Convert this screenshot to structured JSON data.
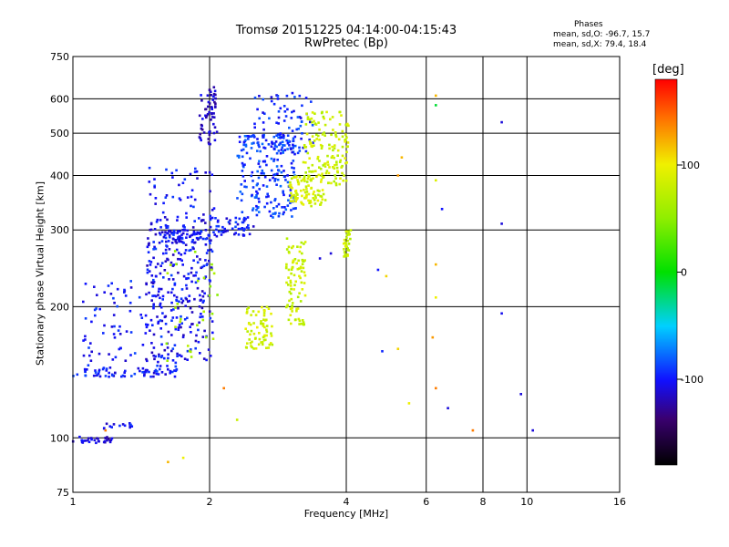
{
  "header": {
    "title": "Tromsø 20151225 04:14:00-04:15:43",
    "subtitle": "RwPretec (Bp)",
    "phases_label": "Phases",
    "stat_o": "mean, sd,O: -96.7, 15.7",
    "stat_x": "mean, sd,X: 79.4, 18.4"
  },
  "colorbar": {
    "label": "[deg]",
    "ticks": [
      {
        "value": 100,
        "label": "100"
      },
      {
        "value": 0,
        "label": "0"
      },
      {
        "value": -100,
        "label": "-100"
      }
    ],
    "range": [
      -180,
      180
    ]
  },
  "chart_data": {
    "type": "scatter",
    "title": "Tromsø 20151225 04:14:00-04:15:43",
    "subtitle": "RwPretec (Bp)",
    "xlabel": "Frequency [MHz]",
    "ylabel": "Stationary phase Virtual Height [km]",
    "x_scale": "log",
    "y_scale": "log",
    "xlim": [
      1,
      16
    ],
    "ylim": [
      75,
      750
    ],
    "x_ticks": [
      1,
      2,
      4,
      6,
      8,
      10,
      16
    ],
    "x_tick_labels": [
      "1",
      "2",
      "4",
      "6",
      "8",
      "10",
      "16"
    ],
    "y_ticks": [
      75,
      100,
      200,
      300,
      400,
      500,
      600,
      750
    ],
    "y_tick_labels": [
      "75",
      "100",
      "200",
      "300",
      "400",
      "500",
      "600",
      "750"
    ],
    "grid": true,
    "color_by": "phase [deg]",
    "traces": [
      {
        "x_range": [
          1.0,
          1.22
        ],
        "y_range": [
          97,
          101
        ],
        "phase": -110,
        "n": 30
      },
      {
        "x_range": [
          1.17,
          1.38
        ],
        "y_range": [
          104,
          108
        ],
        "phase": -105,
        "n": 14
      },
      {
        "x_range": [
          1.0,
          1.7
        ],
        "y_range": [
          138,
          145
        ],
        "phase": -100,
        "n": 70
      },
      {
        "x_range": [
          1.05,
          1.75
        ],
        "y_range": [
          145,
          230
        ],
        "phase": -100,
        "n": 110
      },
      {
        "x_range": [
          1.45,
          2.05
        ],
        "y_range": [
          150,
          330
        ],
        "phase": -105,
        "n": 220
      },
      {
        "x_range": [
          1.55,
          2.0
        ],
        "y_range": [
          280,
          300
        ],
        "phase": -102,
        "n": 70
      },
      {
        "x_range": [
          1.45,
          2.05
        ],
        "y_range": [
          230,
          420
        ],
        "phase": -100,
        "n": 90
      },
      {
        "x_range": [
          1.9,
          2.08
        ],
        "y_range": [
          470,
          640
        ],
        "phase": -115,
        "n": 60
      },
      {
        "x_range": [
          2.05,
          2.5
        ],
        "y_range": [
          290,
          320
        ],
        "phase": -100,
        "n": 50
      },
      {
        "x_range": [
          2.3,
          3.1
        ],
        "y_range": [
          320,
          500
        ],
        "phase": -90,
        "n": 220
      },
      {
        "x_range": [
          2.5,
          3.4
        ],
        "y_range": [
          450,
          620
        ],
        "phase": -95,
        "n": 80
      },
      {
        "x_range": [
          3.0,
          3.6
        ],
        "y_range": [
          340,
          400
        ],
        "phase": 85,
        "n": 90
      },
      {
        "x_range": [
          3.2,
          4.05
        ],
        "y_range": [
          380,
          560
        ],
        "phase": 80,
        "n": 150
      },
      {
        "x_range": [
          2.4,
          2.75
        ],
        "y_range": [
          160,
          200
        ],
        "phase": 85,
        "n": 70
      },
      {
        "x_range": [
          2.95,
          3.25
        ],
        "y_range": [
          180,
          290
        ],
        "phase": 80,
        "n": 90
      },
      {
        "x_range": [
          3.95,
          4.1
        ],
        "y_range": [
          260,
          300
        ],
        "phase": 82,
        "n": 30
      },
      {
        "x_range": [
          1.6,
          2.1
        ],
        "y_range": [
          150,
          280
        ],
        "phase": 60,
        "n": 30
      }
    ],
    "points": [
      {
        "x": 8.8,
        "y": 530,
        "phase": -110
      },
      {
        "x": 8.8,
        "y": 310,
        "phase": -110
      },
      {
        "x": 8.8,
        "y": 193,
        "phase": -105
      },
      {
        "x": 9.7,
        "y": 126,
        "phase": -110
      },
      {
        "x": 10.3,
        "y": 104,
        "phase": -110
      },
      {
        "x": 6.3,
        "y": 610,
        "phase": 120
      },
      {
        "x": 6.3,
        "y": 580,
        "phase": -10
      },
      {
        "x": 6.3,
        "y": 390,
        "phase": 90
      },
      {
        "x": 6.5,
        "y": 335,
        "phase": -100
      },
      {
        "x": 6.3,
        "y": 250,
        "phase": 120
      },
      {
        "x": 6.3,
        "y": 210,
        "phase": 100
      },
      {
        "x": 6.2,
        "y": 170,
        "phase": 130
      },
      {
        "x": 6.3,
        "y": 130,
        "phase": 140
      },
      {
        "x": 6.7,
        "y": 117,
        "phase": -110
      },
      {
        "x": 7.6,
        "y": 104,
        "phase": 140
      },
      {
        "x": 5.3,
        "y": 440,
        "phase": 120
      },
      {
        "x": 5.2,
        "y": 400,
        "phase": 130
      },
      {
        "x": 4.7,
        "y": 243,
        "phase": -100
      },
      {
        "x": 4.9,
        "y": 235,
        "phase": 110
      },
      {
        "x": 5.2,
        "y": 160,
        "phase": 110
      },
      {
        "x": 4.8,
        "y": 158,
        "phase": -95
      },
      {
        "x": 5.5,
        "y": 120,
        "phase": 100
      },
      {
        "x": 3.7,
        "y": 265,
        "phase": -110
      },
      {
        "x": 3.5,
        "y": 258,
        "phase": -110
      },
      {
        "x": 2.15,
        "y": 130,
        "phase": 140
      },
      {
        "x": 2.3,
        "y": 110,
        "phase": 80
      },
      {
        "x": 1.62,
        "y": 88,
        "phase": 120
      },
      {
        "x": 1.75,
        "y": 90,
        "phase": 100
      },
      {
        "x": 1.18,
        "y": 104,
        "phase": 140
      }
    ]
  }
}
